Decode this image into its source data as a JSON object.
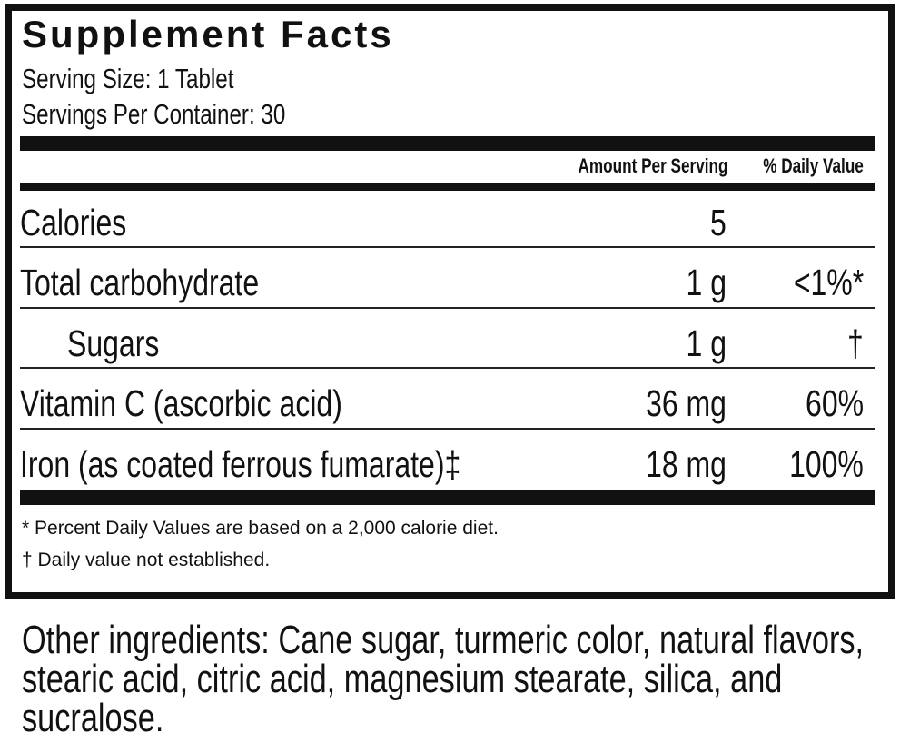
{
  "panel": {
    "title": "Supplement Facts",
    "serving_size": "Serving Size: 1 Tablet",
    "servings_per_container": "Servings Per Container: 30",
    "header": {
      "amount": "Amount Per Serving",
      "daily_value": "% Daily Value"
    },
    "rows": [
      {
        "name": "Calories",
        "amount": "5",
        "dv": ""
      },
      {
        "name": "Total carbohydrate",
        "amount": "1 g",
        "dv": "<1%*"
      },
      {
        "name": "Sugars",
        "amount": "1 g",
        "dv": "†"
      },
      {
        "name": "Vitamin C (ascorbic acid)",
        "amount": "36 mg",
        "dv": "60%"
      },
      {
        "name": "Iron (as coated ferrous fumarate)‡",
        "amount": "18 mg",
        "dv": "100%"
      }
    ],
    "footnotes": [
      "* Percent Daily Values are based on a 2,000 calorie diet.",
      "† Daily value not established."
    ]
  },
  "other_ingredients": "Other ingredients: Cane sugar, turmeric color, natural flavors, stearic acid, citric acid, magnesium stearate, silica, and sucralose."
}
